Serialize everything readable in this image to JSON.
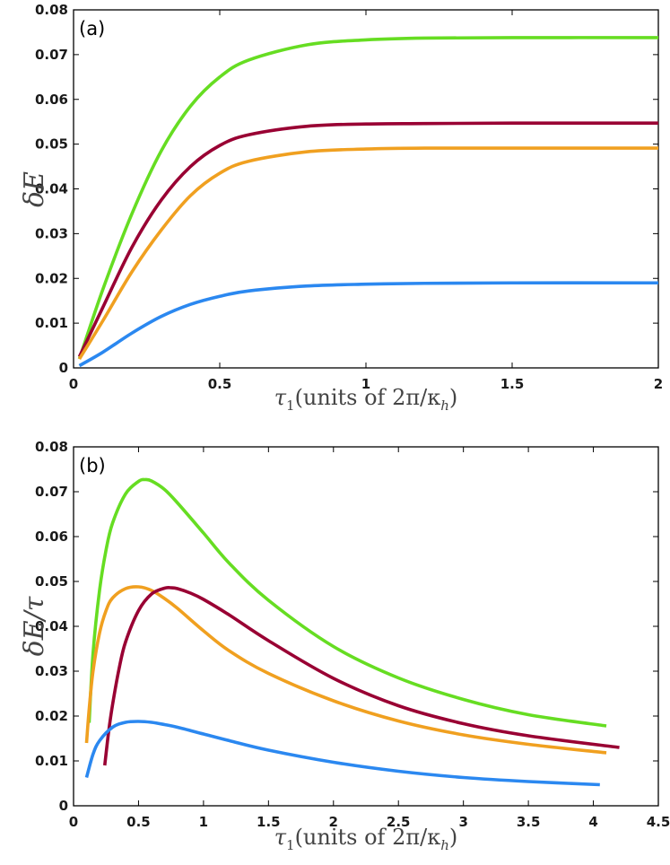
{
  "chart_data": [
    {
      "type": "line",
      "panel_label": "(a)",
      "title": "",
      "xlabel_main": "τ",
      "xlabel_sub": "1",
      "xlabel_rest": "(units of 2π/κ",
      "xlabel_sub2": "h",
      "xlabel_end": ")",
      "ylabel": "δE",
      "xlim": [
        0,
        2
      ],
      "ylim": [
        0,
        0.08
      ],
      "xticks": [
        "0",
        "0.5",
        "1",
        "1.5",
        "2"
      ],
      "xtick_values": [
        0,
        0.5,
        1,
        1.5,
        2
      ],
      "yticks": [
        "0",
        "0.01",
        "0.02",
        "0.03",
        "0.04",
        "0.05",
        "0.06",
        "0.07",
        "0.08"
      ],
      "ytick_values": [
        0,
        0.01,
        0.02,
        0.03,
        0.04,
        0.05,
        0.06,
        0.07,
        0.08
      ],
      "grid": false,
      "series": [
        {
          "name": "green",
          "color": "#66dd22",
          "x": [
            0.02,
            0.1,
            0.2,
            0.3,
            0.4,
            0.5,
            0.6,
            0.8,
            1.0,
            1.2,
            1.5,
            2.0
          ],
          "y": [
            0.002,
            0.0175,
            0.0345,
            0.0485,
            0.0585,
            0.065,
            0.0688,
            0.0722,
            0.0733,
            0.0737,
            0.0738,
            0.0738
          ]
        },
        {
          "name": "crimson",
          "color": "#990033",
          "x": [
            0.02,
            0.1,
            0.2,
            0.3,
            0.4,
            0.5,
            0.6,
            0.8,
            1.0,
            1.2,
            1.5,
            2.0
          ],
          "y": [
            0.0025,
            0.0135,
            0.027,
            0.0375,
            0.045,
            0.0497,
            0.0521,
            0.054,
            0.0545,
            0.0546,
            0.0547,
            0.0547
          ]
        },
        {
          "name": "orange",
          "color": "#f0a020",
          "x": [
            0.02,
            0.1,
            0.2,
            0.3,
            0.4,
            0.5,
            0.6,
            0.8,
            1.0,
            1.2,
            1.5,
            2.0
          ],
          "y": [
            0.002,
            0.0105,
            0.0215,
            0.0308,
            0.0385,
            0.0435,
            0.0462,
            0.0483,
            0.0489,
            0.0491,
            0.0491,
            0.0491
          ]
        },
        {
          "name": "blue",
          "color": "#2b88f0",
          "x": [
            0.02,
            0.1,
            0.2,
            0.3,
            0.4,
            0.5,
            0.6,
            0.8,
            1.0,
            1.2,
            1.5,
            2.0
          ],
          "y": [
            0.0005,
            0.0035,
            0.0078,
            0.0115,
            0.0142,
            0.016,
            0.0172,
            0.0183,
            0.0187,
            0.0189,
            0.019,
            0.019
          ]
        }
      ]
    },
    {
      "type": "line",
      "panel_label": "(b)",
      "title": "",
      "xlabel_main": "τ",
      "xlabel_sub": "1",
      "xlabel_rest": "(units of 2π/κ",
      "xlabel_sub2": "h",
      "xlabel_end": ")",
      "ylabel": "δE/τ",
      "xlim": [
        0,
        4.5
      ],
      "ylim": [
        0,
        0.08
      ],
      "xticks": [
        "0",
        "0.5",
        "1",
        "1.5",
        "2",
        "2.5",
        "3",
        "3.5",
        "4",
        "4.5"
      ],
      "xtick_values": [
        0,
        0.5,
        1,
        1.5,
        2,
        2.5,
        3,
        3.5,
        4,
        4.5
      ],
      "yticks": [
        "0",
        "0.01",
        "0.02",
        "0.03",
        "0.04",
        "0.05",
        "0.06",
        "0.07",
        "0.08"
      ],
      "ytick_values": [
        0,
        0.01,
        0.02,
        0.03,
        0.04,
        0.05,
        0.06,
        0.07,
        0.08
      ],
      "grid": false,
      "series": [
        {
          "name": "green",
          "color": "#66dd22",
          "x": [
            0.12,
            0.15,
            0.2,
            0.25,
            0.3,
            0.4,
            0.5,
            0.55,
            0.6,
            0.7,
            0.8,
            1.0,
            1.2,
            1.5,
            2.0,
            2.5,
            3.0,
            3.5,
            4.1
          ],
          "y": [
            0.0185,
            0.034,
            0.048,
            0.057,
            0.063,
            0.0695,
            0.0723,
            0.0727,
            0.0724,
            0.0705,
            0.0675,
            0.0608,
            0.054,
            0.0458,
            0.0355,
            0.0285,
            0.0237,
            0.0203,
            0.0178
          ]
        },
        {
          "name": "orange",
          "color": "#f0a020",
          "x": [
            0.1,
            0.12,
            0.15,
            0.2,
            0.25,
            0.3,
            0.4,
            0.5,
            0.6,
            0.7,
            0.8,
            1.0,
            1.2,
            1.5,
            2.0,
            2.5,
            3.0,
            3.5,
            4.1
          ],
          "y": [
            0.014,
            0.0215,
            0.03,
            0.0385,
            0.0435,
            0.0463,
            0.0484,
            0.0488,
            0.048,
            0.0462,
            0.044,
            0.039,
            0.0345,
            0.0295,
            0.0234,
            0.0189,
            0.0158,
            0.0137,
            0.0118
          ]
        },
        {
          "name": "crimson",
          "color": "#990033",
          "x": [
            0.24,
            0.27,
            0.3,
            0.35,
            0.4,
            0.5,
            0.6,
            0.7,
            0.75,
            0.8,
            0.9,
            1.0,
            1.2,
            1.5,
            2.0,
            2.5,
            3.0,
            3.5,
            4.2
          ],
          "y": [
            0.009,
            0.0165,
            0.0225,
            0.0305,
            0.0365,
            0.0435,
            0.0472,
            0.0485,
            0.0486,
            0.0484,
            0.0474,
            0.046,
            0.0425,
            0.0368,
            0.0284,
            0.0223,
            0.0183,
            0.0156,
            0.013
          ]
        },
        {
          "name": "blue",
          "color": "#2b88f0",
          "x": [
            0.1,
            0.15,
            0.2,
            0.3,
            0.4,
            0.5,
            0.6,
            0.7,
            0.8,
            1.0,
            1.2,
            1.5,
            2.0,
            2.5,
            3.0,
            3.5,
            4.05
          ],
          "y": [
            0.0063,
            0.0115,
            0.0145,
            0.0175,
            0.0186,
            0.0188,
            0.0186,
            0.0181,
            0.0175,
            0.016,
            0.0145,
            0.0124,
            0.0097,
            0.0077,
            0.0063,
            0.0054,
            0.0047
          ]
        }
      ]
    }
  ]
}
